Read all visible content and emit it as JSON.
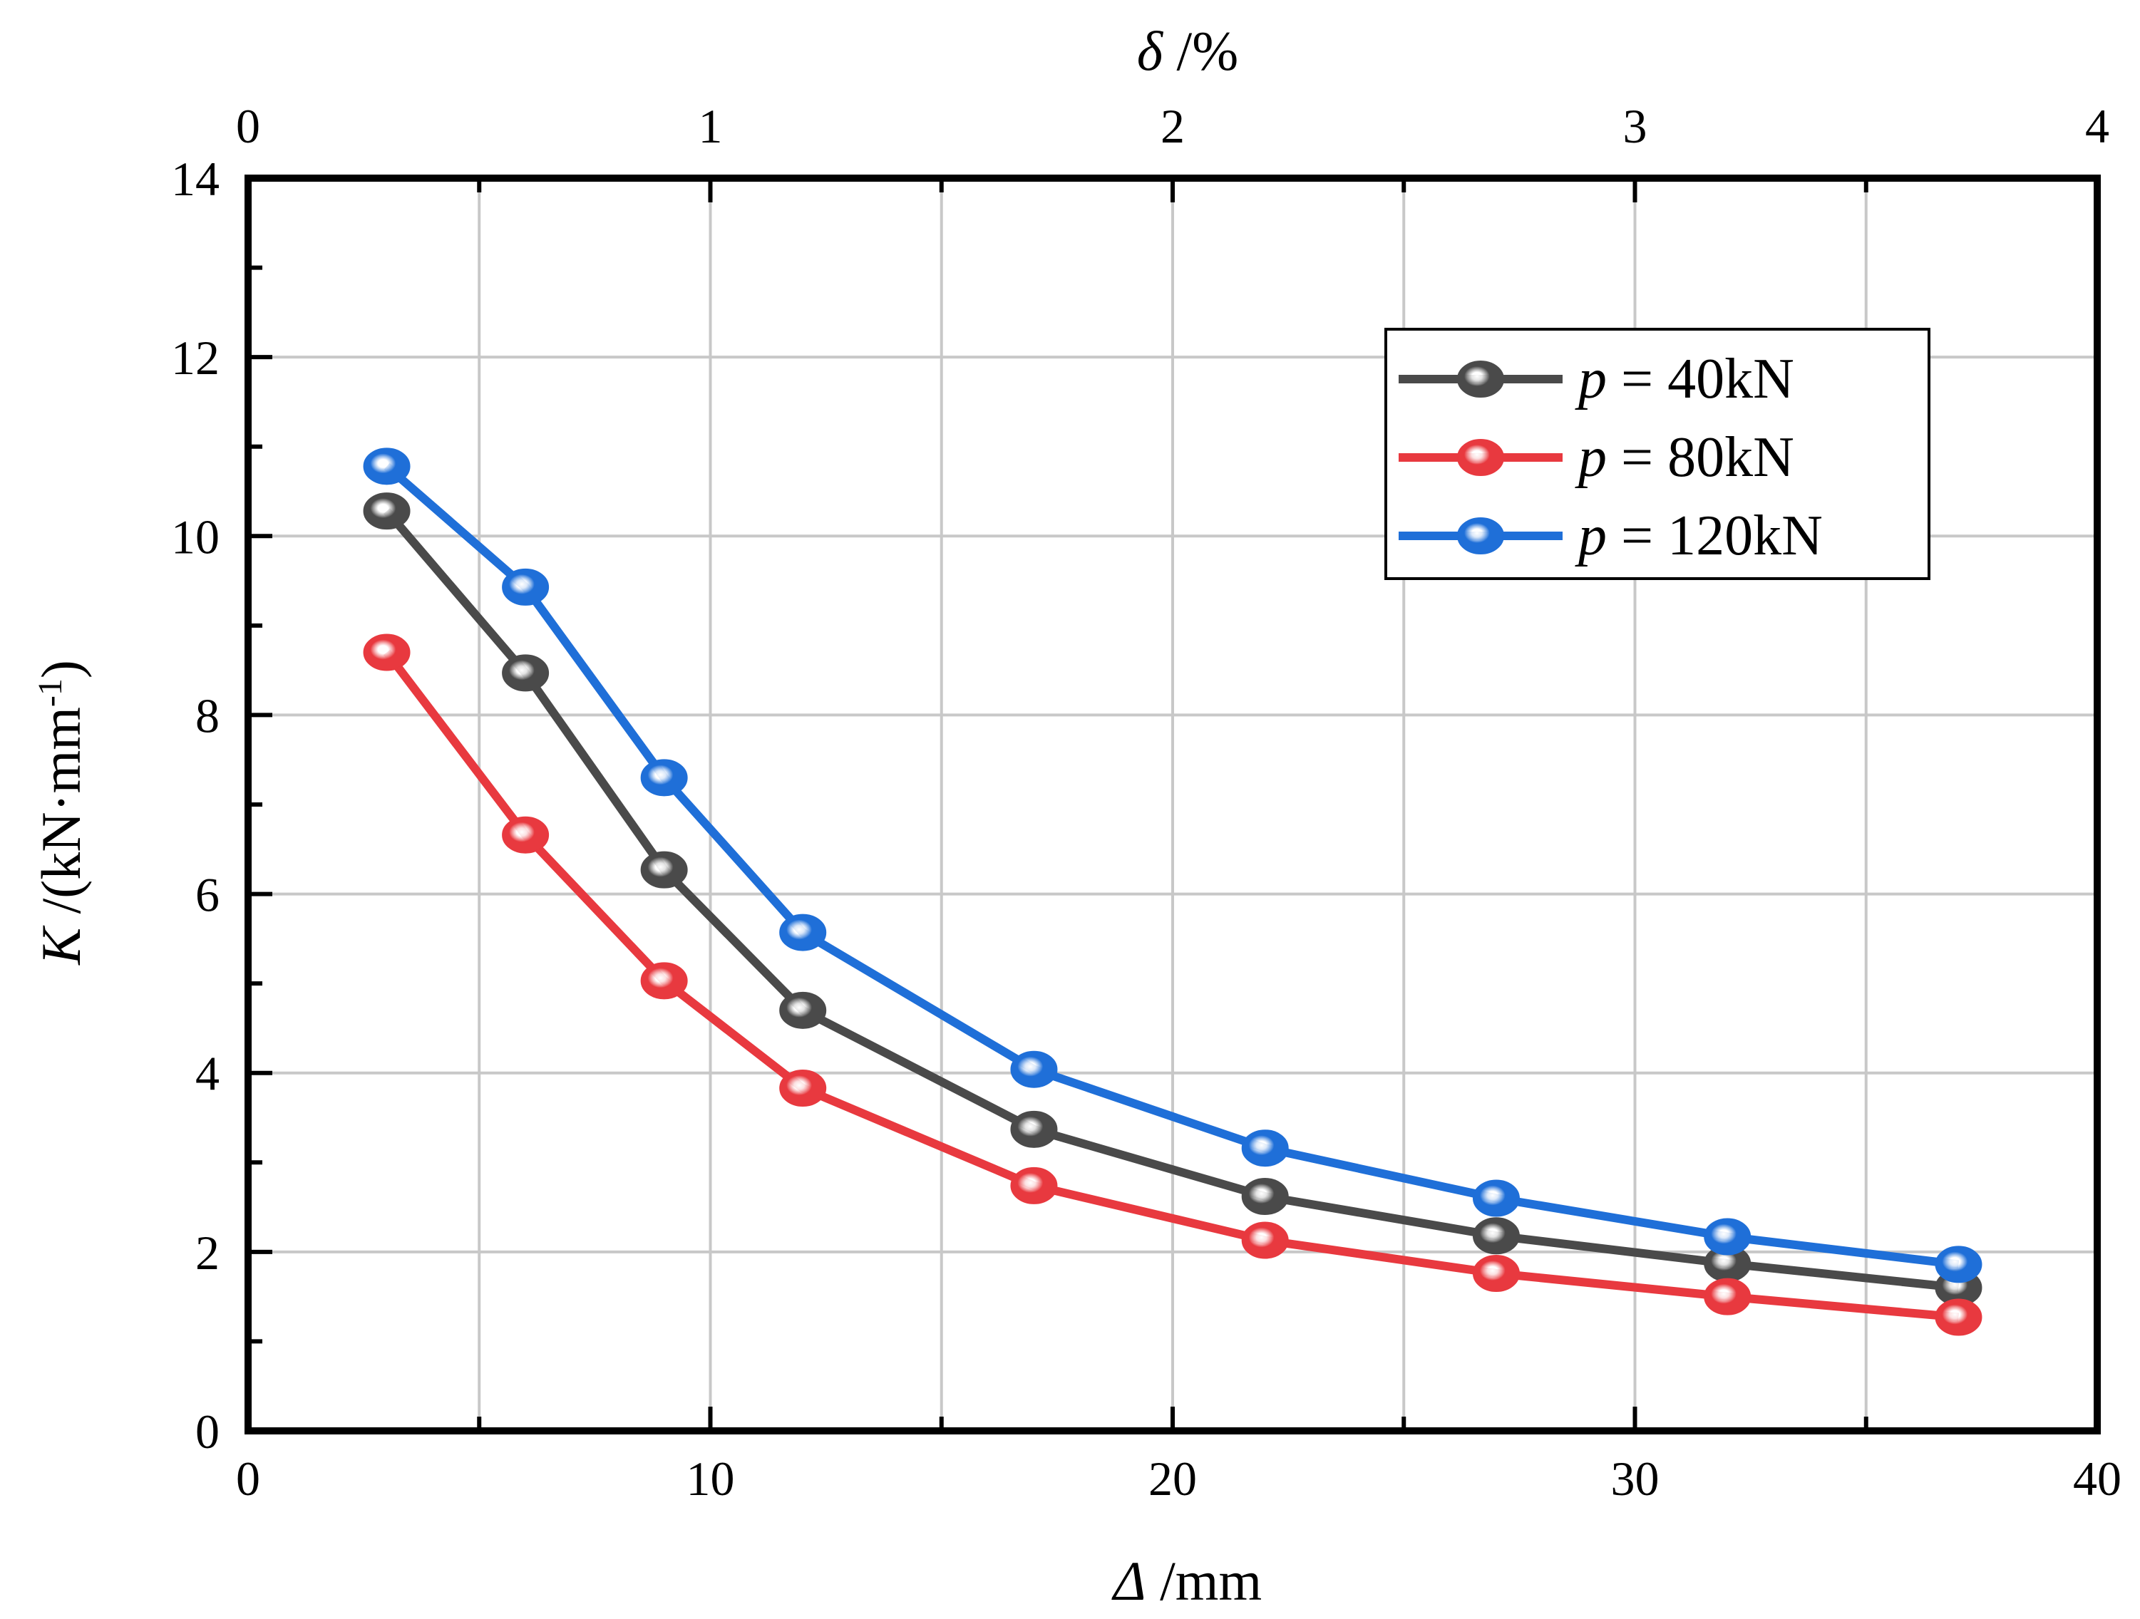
{
  "chart_data": {
    "type": "line",
    "title": "",
    "xlabel_italic": "Δ",
    "xlabel_unit": " /mm",
    "ylabel_italic": "K",
    "ylabel_unit": " /(kN·mm",
    "ylabel_sup": "-1",
    "ylabel_close": ")",
    "top_xlabel_italic": "δ",
    "top_xlabel_unit": " /%",
    "xlim": [
      0,
      40
    ],
    "ylim": [
      0,
      14
    ],
    "top_xlim": [
      0,
      4
    ],
    "x_ticks": [
      "0",
      "10",
      "20",
      "30",
      "40"
    ],
    "y_ticks": [
      "0",
      "2",
      "4",
      "6",
      "8",
      "10",
      "12",
      "14"
    ],
    "top_x_ticks": [
      "0",
      "1",
      "2",
      "3",
      "4"
    ],
    "grid": true,
    "legend_position": "top-right",
    "x": [
      3,
      6,
      9,
      12,
      17,
      22,
      27,
      32,
      37
    ],
    "series": [
      {
        "name_var": "p",
        "name_rest": " = 40kN",
        "color": "#4a4a4a",
        "values": [
          10.28,
          8.47,
          6.27,
          4.7,
          3.37,
          2.62,
          2.18,
          1.87,
          1.6
        ]
      },
      {
        "name_var": "p",
        "name_rest": " = 80kN",
        "color": "#e8393f",
        "values": [
          8.7,
          6.66,
          5.03,
          3.83,
          2.74,
          2.13,
          1.76,
          1.5,
          1.27
        ]
      },
      {
        "name_var": "p",
        "name_rest": " = 120kN",
        "color": "#1f6fd8",
        "values": [
          10.78,
          9.43,
          7.3,
          5.57,
          4.04,
          3.16,
          2.6,
          2.17,
          1.86
        ]
      }
    ]
  }
}
